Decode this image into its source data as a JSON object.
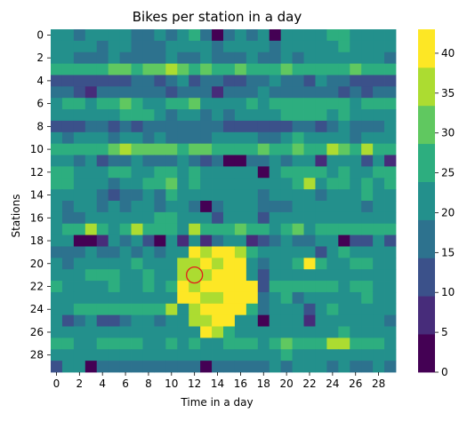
{
  "chart_data": {
    "type": "heatmap",
    "title": "Bikes per station in a day",
    "xlabel": "Time in a day",
    "ylabel": "Stations",
    "x_tick_labels": [
      "0",
      "2",
      "4",
      "6",
      "8",
      "10",
      "12",
      "14",
      "16",
      "18",
      "20",
      "22",
      "24",
      "26",
      "28"
    ],
    "y_tick_labels": [
      "0",
      "2",
      "4",
      "6",
      "8",
      "10",
      "12",
      "14",
      "16",
      "18",
      "20",
      "22",
      "24",
      "26",
      "28"
    ],
    "colorbar_ticks": [
      "0",
      "5",
      "10",
      "15",
      "20",
      "25",
      "30",
      "35",
      "40"
    ],
    "colorbar_range": [
      0,
      43
    ],
    "colormap": "viridis",
    "rows": 30,
    "cols": 30,
    "values": [
      [
        22,
        22,
        16,
        22,
        20,
        20,
        22,
        17,
        16,
        21,
        19,
        20,
        24,
        17,
        4,
        17,
        23,
        18,
        20,
        3,
        20,
        22,
        22,
        22,
        24,
        24,
        23,
        23,
        23,
        20
      ],
      [
        20,
        20,
        20,
        22,
        17,
        22,
        22,
        18,
        17,
        18,
        21,
        20,
        23,
        23,
        19,
        23,
        21,
        22,
        20,
        17,
        21,
        21,
        22,
        23,
        20,
        24,
        22,
        23,
        20,
        22
      ],
      [
        20,
        21,
        17,
        18,
        16,
        20,
        17,
        19,
        17,
        18,
        20,
        19,
        17,
        21,
        19,
        19,
        18,
        20,
        19,
        17,
        22,
        18,
        23,
        20,
        20,
        22,
        20,
        22,
        20,
        16
      ],
      [
        28,
        24,
        28,
        24,
        28,
        30,
        30,
        26,
        32,
        30,
        35,
        33,
        27,
        30,
        24,
        24,
        30,
        28,
        24,
        24,
        32,
        24,
        24,
        24,
        28,
        28,
        30,
        24,
        24,
        24
      ],
      [
        14,
        14,
        14,
        12,
        14,
        10,
        11,
        18,
        16,
        14,
        17,
        20,
        11,
        16,
        17,
        12,
        14,
        18,
        17,
        20,
        16,
        18,
        11,
        20,
        19,
        16,
        14,
        14,
        14,
        14
      ],
      [
        17,
        17,
        14,
        9,
        16,
        18,
        16,
        16,
        16,
        18,
        14,
        19,
        15,
        16,
        9,
        17,
        17,
        16,
        21,
        17,
        16,
        17,
        16,
        16,
        16,
        14,
        18,
        12,
        18,
        17
      ],
      [
        22,
        27,
        24,
        20,
        24,
        26,
        29,
        27,
        20,
        23,
        25,
        26,
        30,
        20,
        20,
        21,
        23,
        24,
        22,
        24,
        24,
        27,
        26,
        24,
        26,
        27,
        22,
        26,
        26,
        26
      ],
      [
        22,
        22,
        21,
        20,
        22,
        22,
        24,
        24,
        24,
        20,
        17,
        20,
        20,
        19,
        20,
        19,
        20,
        20,
        20,
        20,
        26,
        24,
        24,
        26,
        22,
        24,
        22,
        21,
        22,
        22
      ],
      [
        14,
        14,
        14,
        18,
        18,
        14,
        18,
        14,
        18,
        16,
        19,
        16,
        16,
        18,
        16,
        10,
        10,
        12,
        10,
        14,
        14,
        16,
        18,
        14,
        16,
        20,
        18,
        18,
        16,
        20
      ],
      [
        20,
        18,
        20,
        20,
        20,
        19,
        20,
        20,
        19,
        22,
        16,
        17,
        18,
        18,
        20,
        20,
        20,
        22,
        19,
        19,
        20,
        28,
        20,
        22,
        20,
        20,
        16,
        20,
        20,
        20
      ],
      [
        26,
        26,
        27,
        28,
        28,
        30,
        36,
        30,
        32,
        32,
        32,
        28,
        30,
        30,
        28,
        27,
        28,
        28,
        30,
        28,
        26,
        30,
        28,
        26,
        34,
        30,
        28,
        34,
        28,
        28
      ],
      [
        20,
        20,
        16,
        20,
        12,
        16,
        18,
        20,
        16,
        16,
        18,
        20,
        16,
        14,
        18,
        4,
        4,
        18,
        16,
        20,
        18,
        20,
        20,
        6,
        20,
        20,
        20,
        12,
        20,
        6
      ],
      [
        24,
        24,
        22,
        22,
        22,
        24,
        24,
        22,
        22,
        24,
        24,
        22,
        24,
        22,
        20,
        22,
        22,
        22,
        4,
        22,
        24,
        24,
        24,
        24,
        20,
        24,
        22,
        22,
        24,
        24
      ],
      [
        26,
        28,
        22,
        22,
        20,
        18,
        20,
        22,
        28,
        24,
        32,
        22,
        24,
        22,
        22,
        22,
        22,
        20,
        22,
        22,
        22,
        28,
        38,
        22,
        26,
        24,
        22,
        26,
        22,
        28
      ],
      [
        22,
        22,
        22,
        20,
        18,
        14,
        16,
        18,
        22,
        18,
        24,
        22,
        22,
        20,
        22,
        20,
        22,
        22,
        18,
        22,
        20,
        20,
        20,
        16,
        22,
        22,
        20,
        24,
        22,
        20
      ],
      [
        22,
        18,
        20,
        20,
        16,
        20,
        18,
        20,
        20,
        18,
        20,
        22,
        18,
        4,
        16,
        20,
        22,
        20,
        16,
        18,
        16,
        20,
        20,
        20,
        20,
        20,
        20,
        16,
        20,
        20
      ],
      [
        20,
        18,
        16,
        20,
        20,
        20,
        20,
        20,
        20,
        26,
        26,
        22,
        20,
        20,
        14,
        20,
        20,
        20,
        10,
        20,
        20,
        20,
        20,
        20,
        20,
        20,
        20,
        20,
        20,
        20
      ],
      [
        20,
        28,
        24,
        34,
        26,
        22,
        26,
        36,
        26,
        28,
        26,
        22,
        36,
        24,
        24,
        28,
        30,
        26,
        24,
        20,
        28,
        32,
        20,
        24,
        28,
        28,
        26,
        26,
        26,
        24
      ],
      [
        22,
        22,
        4,
        4,
        6,
        22,
        18,
        22,
        12,
        4,
        20,
        6,
        20,
        8,
        18,
        20,
        20,
        8,
        12,
        18,
        22,
        18,
        18,
        20,
        20,
        4,
        12,
        12,
        20,
        12
      ],
      [
        18,
        18,
        18,
        20,
        18,
        18,
        22,
        18,
        20,
        16,
        20,
        20,
        40,
        36,
        40,
        40,
        38,
        24,
        22,
        22,
        20,
        20,
        20,
        10,
        20,
        26,
        20,
        20,
        20,
        20
      ],
      [
        20,
        18,
        20,
        22,
        20,
        22,
        20,
        24,
        22,
        22,
        22,
        36,
        37,
        40,
        38,
        40,
        40,
        22,
        16,
        22,
        22,
        26,
        42,
        24,
        22,
        22,
        24,
        24,
        22,
        22
      ],
      [
        20,
        20,
        22,
        24,
        26,
        28,
        20,
        22,
        24,
        20,
        22,
        36,
        34,
        38,
        42,
        40,
        42,
        20,
        12,
        22,
        20,
        20,
        20,
        20,
        20,
        20,
        20,
        22,
        20,
        20
      ],
      [
        24,
        20,
        20,
        22,
        22,
        28,
        20,
        22,
        24,
        22,
        24,
        40,
        38,
        42,
        42,
        42,
        42,
        40,
        14,
        24,
        24,
        26,
        24,
        26,
        24,
        22,
        24,
        24,
        22,
        22
      ],
      [
        22,
        22,
        20,
        22,
        20,
        22,
        22,
        20,
        22,
        20,
        22,
        40,
        40,
        36,
        38,
        40,
        40,
        40,
        16,
        20,
        24,
        18,
        20,
        22,
        20,
        22,
        22,
        24,
        20,
        22
      ],
      [
        22,
        22,
        24,
        24,
        24,
        28,
        24,
        24,
        24,
        28,
        36,
        20,
        36,
        42,
        42,
        42,
        42,
        26,
        18,
        22,
        22,
        22,
        12,
        22,
        24,
        22,
        22,
        22,
        22,
        22
      ],
      [
        20,
        12,
        16,
        20,
        12,
        12,
        16,
        20,
        20,
        16,
        20,
        20,
        36,
        36,
        40,
        40,
        22,
        22,
        4,
        22,
        22,
        22,
        8,
        20,
        20,
        22,
        22,
        22,
        22,
        16
      ],
      [
        20,
        20,
        20,
        20,
        20,
        20,
        20,
        20,
        20,
        20,
        20,
        20,
        20,
        42,
        36,
        28,
        22,
        20,
        20,
        20,
        22,
        20,
        22,
        20,
        20,
        24,
        20,
        22,
        20,
        22
      ],
      [
        26,
        24,
        22,
        20,
        24,
        24,
        24,
        24,
        22,
        20,
        24,
        20,
        24,
        20,
        20,
        24,
        24,
        24,
        20,
        24,
        32,
        28,
        26,
        26,
        34,
        34,
        24,
        24,
        24,
        20
      ],
      [
        20,
        20,
        20,
        22,
        20,
        22,
        20,
        20,
        20,
        20,
        20,
        20,
        20,
        20,
        20,
        22,
        20,
        20,
        20,
        20,
        26,
        22,
        22,
        20,
        20,
        20,
        20,
        20,
        20,
        20
      ],
      [
        14,
        20,
        20,
        4,
        18,
        18,
        18,
        18,
        18,
        18,
        18,
        18,
        18,
        4,
        18,
        18,
        18,
        18,
        18,
        20,
        18,
        20,
        20,
        20,
        18,
        20,
        18,
        18,
        20,
        16
      ]
    ],
    "annotation": {
      "type": "circle",
      "row": 21,
      "col": 12,
      "color": "#e41a1c"
    }
  }
}
